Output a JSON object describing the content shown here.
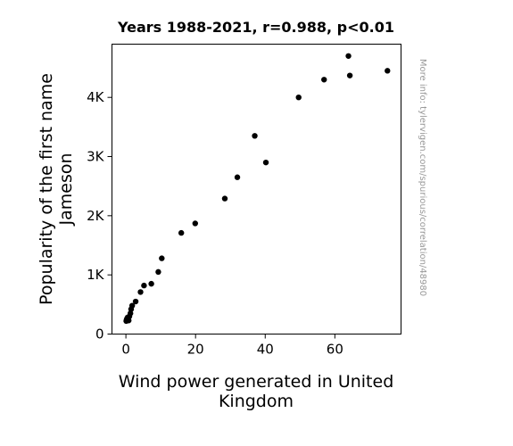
{
  "chart_data": {
    "type": "scatter",
    "title": "Years 1988-2021, r=0.988, p<0.01",
    "xlabel_lines": [
      "Wind power generated in United",
      "Kingdom"
    ],
    "ylabel_lines": [
      "Popularity of the first name",
      "Jameson"
    ],
    "xlim": [
      -4,
      79
    ],
    "ylim": [
      0,
      4900
    ],
    "x_ticks": [
      {
        "value": 0,
        "label": "0"
      },
      {
        "value": 20,
        "label": "20"
      },
      {
        "value": 40,
        "label": "40"
      },
      {
        "value": 60,
        "label": "60"
      }
    ],
    "y_ticks": [
      {
        "value": 0,
        "label": "0"
      },
      {
        "value": 1000,
        "label": "1K"
      },
      {
        "value": 2000,
        "label": "2K"
      },
      {
        "value": 3000,
        "label": "3K"
      },
      {
        "value": 4000,
        "label": "4K"
      }
    ],
    "points": [
      {
        "x": 0.1,
        "y": 220
      },
      {
        "x": 0.2,
        "y": 240
      },
      {
        "x": 0.3,
        "y": 260
      },
      {
        "x": 0.5,
        "y": 280
      },
      {
        "x": 0.8,
        "y": 230
      },
      {
        "x": 1.0,
        "y": 300
      },
      {
        "x": 1.3,
        "y": 350
      },
      {
        "x": 1.5,
        "y": 420
      },
      {
        "x": 1.8,
        "y": 480
      },
      {
        "x": 2.8,
        "y": 550
      },
      {
        "x": 4.2,
        "y": 710
      },
      {
        "x": 5.2,
        "y": 820
      },
      {
        "x": 7.3,
        "y": 850
      },
      {
        "x": 9.3,
        "y": 1050
      },
      {
        "x": 10.3,
        "y": 1280
      },
      {
        "x": 15.9,
        "y": 1710
      },
      {
        "x": 19.9,
        "y": 1870
      },
      {
        "x": 28.4,
        "y": 2290
      },
      {
        "x": 32.0,
        "y": 2650
      },
      {
        "x": 37.0,
        "y": 3350
      },
      {
        "x": 40.2,
        "y": 2900
      },
      {
        "x": 49.6,
        "y": 4000
      },
      {
        "x": 56.9,
        "y": 4300
      },
      {
        "x": 63.9,
        "y": 4700
      },
      {
        "x": 64.3,
        "y": 4370
      },
      {
        "x": 75.1,
        "y": 4450
      }
    ],
    "marker_color": "#000000",
    "grid": false,
    "legend": "none"
  },
  "side_note": "More info: tylervigen.com/spurious/correlation/48980"
}
